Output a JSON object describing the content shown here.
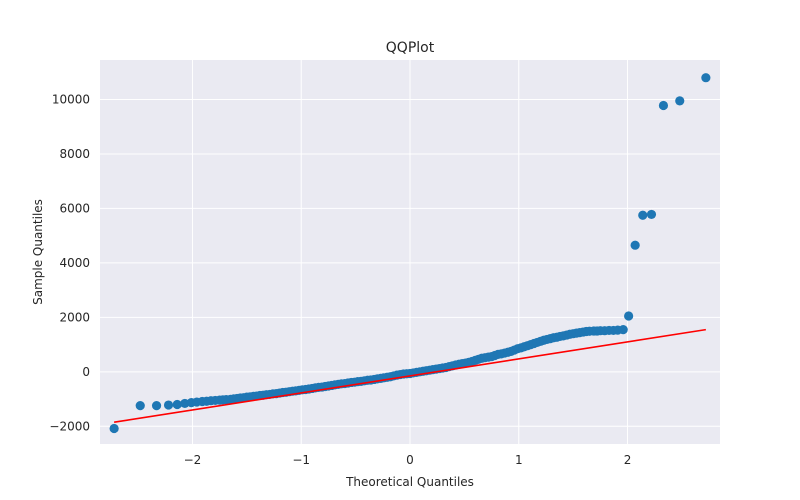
{
  "chart_data": {
    "type": "scatter",
    "title": "QQPlot",
    "xlabel": "Theoretical Quantiles",
    "ylabel": "Sample Quantiles",
    "xlim": [
      -2.85,
      2.85
    ],
    "ylim": [
      -2650,
      11450
    ],
    "xticks": [
      -2,
      -1,
      0,
      1,
      2
    ],
    "xtick_labels": [
      "−2",
      "−1",
      "0",
      "1",
      "2"
    ],
    "yticks": [
      -2000,
      0,
      2000,
      4000,
      6000,
      8000,
      10000
    ],
    "ytick_labels": [
      "−2000",
      "0",
      "2000",
      "4000",
      "6000",
      "8000",
      "10000"
    ],
    "grid": true,
    "background": "#eaeaf2",
    "point_color": "#1f77b4",
    "line_color": "#ff0000",
    "reference_line": {
      "x": [
        -2.72,
        2.72
      ],
      "y": [
        -1850,
        1550
      ]
    },
    "series": [
      {
        "x": [
          -2.72,
          -2.48,
          -2.33,
          -2.22,
          -2.14,
          -2.07,
          -2.01,
          -1.96,
          -1.91,
          -1.87,
          -1.83,
          -1.79,
          -1.75,
          -1.72,
          -1.69,
          -1.65,
          -1.62,
          -1.59,
          -1.56,
          -1.53,
          -1.5,
          -1.47,
          -1.44,
          -1.41,
          -1.38,
          -1.35,
          -1.32,
          -1.29,
          -1.26,
          -1.23,
          -1.2,
          -1.17,
          -1.14,
          -1.11,
          -1.08,
          -1.05,
          -1.02,
          -0.99,
          -0.96,
          -0.93,
          -0.9,
          -0.87,
          -0.84,
          -0.81,
          -0.78,
          -0.75,
          -0.72,
          -0.69,
          -0.66,
          -0.63,
          -0.6,
          -0.57,
          -0.54,
          -0.51,
          -0.48,
          -0.45,
          -0.42,
          -0.39,
          -0.36,
          -0.33,
          -0.3,
          -0.27,
          -0.24,
          -0.21,
          -0.18,
          -0.15,
          -0.12,
          -0.09,
          -0.06,
          -0.03,
          0.0,
          0.03,
          0.06,
          0.09,
          0.12,
          0.15,
          0.18,
          0.21,
          0.24,
          0.27,
          0.3,
          0.33,
          0.36,
          0.39,
          0.42,
          0.45,
          0.48,
          0.51,
          0.54,
          0.57,
          0.6,
          0.63,
          0.66,
          0.69,
          0.72,
          0.75,
          0.78,
          0.81,
          0.84,
          0.87,
          0.9,
          0.93,
          0.96,
          0.99,
          1.02,
          1.05,
          1.08,
          1.11,
          1.14,
          1.17,
          1.2,
          1.23,
          1.26,
          1.29,
          1.32,
          1.35,
          1.38,
          1.41,
          1.44,
          1.47,
          1.5,
          1.53,
          1.56,
          1.59,
          1.62,
          1.65,
          1.69,
          1.72,
          1.75,
          1.79,
          1.83,
          1.87,
          1.91,
          1.96,
          2.01,
          2.07,
          2.14,
          2.22,
          2.33,
          2.48,
          2.72
        ],
        "y": [
          -2080,
          -1240,
          -1240,
          -1220,
          -1200,
          -1160,
          -1130,
          -1110,
          -1090,
          -1080,
          -1060,
          -1050,
          -1040,
          -1030,
          -1020,
          -1010,
          -990,
          -980,
          -960,
          -950,
          -930,
          -920,
          -900,
          -890,
          -870,
          -860,
          -840,
          -830,
          -810,
          -800,
          -780,
          -760,
          -750,
          -730,
          -710,
          -700,
          -680,
          -660,
          -650,
          -630,
          -610,
          -590,
          -570,
          -560,
          -540,
          -520,
          -500,
          -480,
          -460,
          -440,
          -430,
          -410,
          -390,
          -380,
          -360,
          -350,
          -330,
          -310,
          -300,
          -280,
          -260,
          -240,
          -220,
          -200,
          -180,
          -150,
          -120,
          -100,
          -80,
          -70,
          -60,
          -40,
          -20,
          0,
          20,
          40,
          60,
          80,
          100,
          120,
          140,
          160,
          190,
          220,
          250,
          280,
          300,
          320,
          350,
          380,
          420,
          460,
          500,
          520,
          540,
          560,
          600,
          640,
          660,
          690,
          720,
          750,
          800,
          850,
          880,
          920,
          960,
          1000,
          1040,
          1080,
          1120,
          1160,
          1190,
          1220,
          1250,
          1270,
          1300,
          1320,
          1350,
          1380,
          1400,
          1420,
          1440,
          1460,
          1480,
          1490,
          1500,
          1500,
          1510,
          1510,
          1520,
          1520,
          1530,
          1550,
          2050,
          4650,
          5750,
          5780,
          9780,
          9950,
          10800
        ]
      }
    ]
  }
}
